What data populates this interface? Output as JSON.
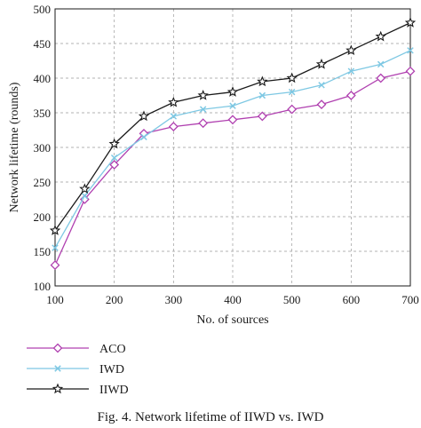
{
  "chart_data": {
    "type": "line",
    "x": [
      100,
      150,
      200,
      250,
      300,
      350,
      400,
      450,
      500,
      550,
      600,
      650,
      700
    ],
    "series": [
      {
        "name": "ACO",
        "color": "#b040b0",
        "marker": "diamond",
        "values": [
          130,
          225,
          275,
          320,
          330,
          335,
          340,
          345,
          355,
          362,
          375,
          400,
          410
        ]
      },
      {
        "name": "IWD",
        "color": "#7ec8e3",
        "marker": "x",
        "values": [
          155,
          230,
          285,
          315,
          345,
          355,
          360,
          375,
          380,
          390,
          410,
          420,
          440
        ]
      },
      {
        "name": "IIWD",
        "color": "#1a1a1a",
        "marker": "star",
        "values": [
          180,
          240,
          305,
          345,
          365,
          375,
          380,
          395,
          400,
          420,
          440,
          460,
          480
        ]
      }
    ],
    "xlabel": "No. of sources",
    "ylabel": "Network lifetime (rounds)",
    "xlim": [
      100,
      700
    ],
    "ylim": [
      100,
      500
    ],
    "xticks": [
      100,
      200,
      300,
      400,
      500,
      600,
      700
    ],
    "yticks": [
      100,
      150,
      200,
      250,
      300,
      350,
      400,
      450,
      500
    ],
    "grid": true,
    "legend_position": "below"
  },
  "caption": "Fig. 4.   Network lifetime of IIWD vs. IWD"
}
